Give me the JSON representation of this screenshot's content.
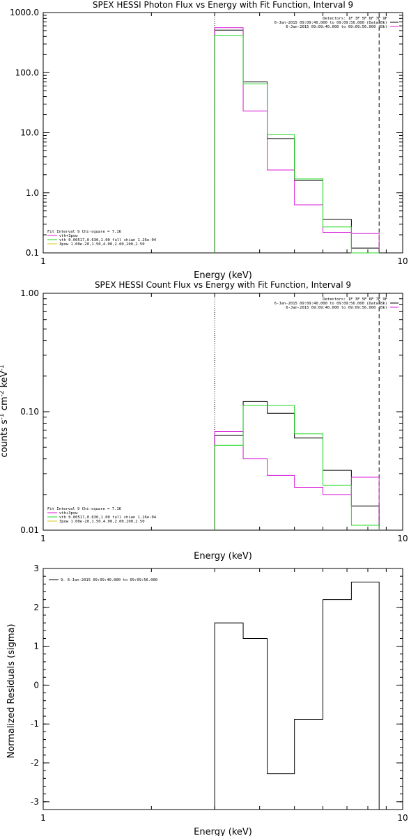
{
  "chart_data": [
    {
      "type": "line",
      "title": "SPEX HESSI Photon Flux vs Energy with Fit Function, Interval 9",
      "xlabel": "Energy (keV)",
      "ylabel": "",
      "xscale": "log",
      "yscale": "log",
      "xlim": [
        1,
        10
      ],
      "ylim": [
        0.1,
        1000
      ],
      "x_tick_labels": [
        "1",
        "10"
      ],
      "y_tick_labels": [
        "0.1",
        "1.0",
        "10.0",
        "100.0",
        "1000.0"
      ],
      "legend_top": [
        {
          "label": "Detectors: 1F 3F 5F 6F 7F 9F",
          "color": ""
        },
        {
          "label": "6-Jan-2015 09:09:40.000 to 09:09:56.000 (Data-Bk)",
          "color": "#000000"
        },
        {
          "label": "6-Jan-2015 09:09:40.000 to 09:09:56.000 (Bk)",
          "color": "#d81bd8"
        }
      ],
      "legend_bottom": [
        {
          "label": "Fit Interval 9   Chi-square = 7.16",
          "color": ""
        },
        {
          "label": "vth+3pow",
          "color": "#d81bd8"
        },
        {
          "label": "vth 0.00517,0.630,1.00  full chian 1.26e-04",
          "color": "#1ed81e"
        },
        {
          "label": "3pow 1.00e-20,1.50,4.00,2.00,100,2.50",
          "color": "#d8c81b"
        }
      ],
      "bin_edges": [
        3.0,
        3.6,
        4.2,
        5.0,
        6.0,
        7.2,
        8.6
      ],
      "vlines": [
        {
          "x": 3.0,
          "style": "dotted"
        },
        {
          "x": 8.6,
          "style": "dashed"
        }
      ],
      "series": [
        {
          "name": "6-Jan-2015 09:09:40.000 to 09:09:56.000 (Data-Bk)",
          "color": "#000000",
          "values": [
            510,
            70,
            8,
            1.6,
            0.36,
            0.12
          ]
        },
        {
          "name": "6-Jan-2015 09:09:40.000 to 09:09:56.000 (Bk)",
          "color": "#d81bd8",
          "values": [
            560,
            23,
            2.4,
            0.63,
            0.22,
            0.21
          ]
        },
        {
          "name": "vth+3pow",
          "color": "#1ed81e",
          "values": [
            420,
            65,
            9.3,
            1.7,
            0.27,
            0.087
          ]
        }
      ]
    },
    {
      "type": "line",
      "title": "SPEX HESSI Count Flux vs Energy with Fit Function, Interval 9",
      "xlabel": "Energy (keV)",
      "ylabel": "counts s-1 cm-2 keV-1",
      "xscale": "log",
      "yscale": "log",
      "xlim": [
        1,
        10
      ],
      "ylim": [
        0.01,
        1
      ],
      "x_tick_labels": [
        "1",
        "10"
      ],
      "y_tick_labels": [
        "0.01",
        "0.10",
        "1.00"
      ],
      "legend_top": [
        {
          "label": "Detectors: 1F 3F 5F 6F 7F 9F",
          "color": ""
        },
        {
          "label": "6-Jan-2015 09:09:40.000 to 09:09:56.000 (Data-Bk)",
          "color": "#000000"
        },
        {
          "label": "6-Jan-2015 09:09:40.000 to 09:09:56.000 (Bk)",
          "color": "#d81bd8"
        }
      ],
      "legend_bottom": [
        {
          "label": "Fit Interval 9   Chi-square = 7.16",
          "color": ""
        },
        {
          "label": "vth+3pow",
          "color": "#d81bd8"
        },
        {
          "label": "vth 0.00517,0.630,1.00  full chian 1.26e-04",
          "color": "#1ed81e"
        },
        {
          "label": "3pow 1.00e-20,1.50,4.00,2.00,100,2.50",
          "color": "#d8c81b"
        }
      ],
      "bin_edges": [
        3.0,
        3.6,
        4.2,
        5.0,
        6.0,
        7.2,
        8.6
      ],
      "vlines": [
        {
          "x": 3.0,
          "style": "dotted"
        },
        {
          "x": 8.6,
          "style": "dashed"
        }
      ],
      "series": [
        {
          "name": "6-Jan-2015 09:09:40.000 to 09:09:56.000 (Data-Bk)",
          "color": "#000000",
          "values": [
            0.063,
            0.122,
            0.097,
            0.06,
            0.032,
            0.016
          ]
        },
        {
          "name": "6-Jan-2015 09:09:40.000 to 09:09:56.000 (Bk)",
          "color": "#d81bd8",
          "values": [
            0.068,
            0.04,
            0.029,
            0.023,
            0.02,
            0.028
          ]
        },
        {
          "name": "vth+3pow",
          "color": "#1ed81e",
          "values": [
            0.052,
            0.113,
            0.113,
            0.065,
            0.024,
            0.011
          ]
        }
      ]
    },
    {
      "type": "line",
      "title": "",
      "xlabel": "Energy (keV)",
      "ylabel": "Normalized Residuals (sigma)",
      "xscale": "log",
      "yscale": "linear",
      "xlim": [
        1,
        10
      ],
      "ylim": [
        -3.2,
        3.0
      ],
      "x_tick_labels": [
        "1",
        "10"
      ],
      "y_tick_labels": [
        "-3",
        "-2",
        "-1",
        "0",
        "1",
        "2",
        "3"
      ],
      "legend_top": [
        {
          "label": "9.  6-Jan-2015 09:09:40.000 to 09:09:56.000",
          "color": "#000000"
        }
      ],
      "legend_bottom": [],
      "bin_edges": [
        3.0,
        3.6,
        4.2,
        5.0,
        6.0,
        7.2,
        7.9,
        8.6
      ],
      "vlines": [],
      "series": [
        {
          "name": "9.  6-Jan-2015 09:09:40.000 to 09:09:56.000",
          "color": "#000000",
          "values": [
            1.6,
            1.2,
            -2.28,
            -0.88,
            2.2,
            2.65,
            2.65
          ]
        }
      ]
    }
  ]
}
